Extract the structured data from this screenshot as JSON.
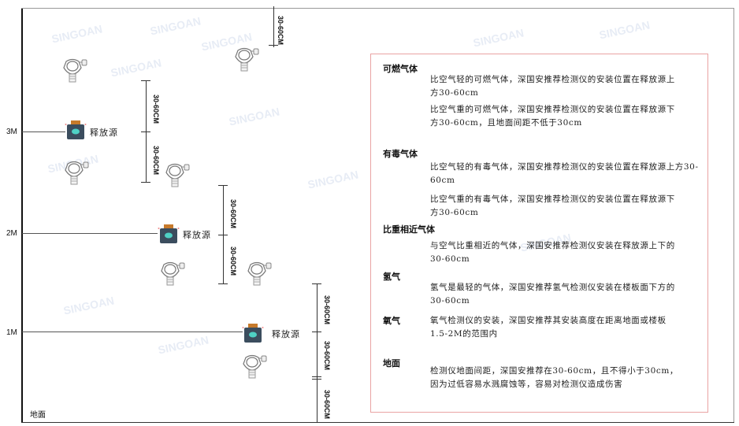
{
  "levels": {
    "m3": "3M",
    "m2": "2M",
    "m1": "1M",
    "ground": "地面"
  },
  "source_label": "释放源",
  "dimension_label": "30-60CM",
  "watermark": "SINGOAN 深国安",
  "panel": {
    "sections": [
      {
        "heading": "可燃气体",
        "paragraphs": [
          "比空气轻的可燃气体，深国安推荐检测仪的安装位置在释放源上方30-60cm",
          "比空气重的可燃气体，深国安推荐检测仪的安装位置在释放源下方30-60cm，且地面间距不低于30cm"
        ]
      },
      {
        "heading": "有毒气体",
        "paragraphs": [
          "比空气轻的有毒气体，深国安推荐检测仪的安装位置在释放源上方30-60cm",
          "比空气重的有毒气体，深国安推荐检测仪的安装位置在释放源下方30-60cm"
        ]
      },
      {
        "heading": "比重相近气体",
        "paragraphs": [
          "与空气比重相近的气体，深国安推荐检测仪安装在释放源上下的30-60cm"
        ]
      },
      {
        "heading": "氢气",
        "paragraphs": [
          "氢气是最轻的气体，深国安推荐氢气检测仪安装在楼板面下方的30-60cm"
        ]
      },
      {
        "heading": "氧气",
        "paragraphs": [
          "氧气检测仪的安装，深国安推荐其安装高度在距离地面或楼板1.5-2M的范围内"
        ]
      },
      {
        "heading": "地面",
        "paragraphs": [
          "检测仪地面间距，深国安推荐在30-60cm，且不得小于30cm，因为过低容易水溅腐蚀等，容易对检测仪造成伤害"
        ]
      }
    ]
  },
  "colors": {
    "panel_border": "#e9a3a3",
    "source_body": "#3b4d5e",
    "source_face": "#4fd1c5",
    "source_cap": "#c77a2b"
  }
}
